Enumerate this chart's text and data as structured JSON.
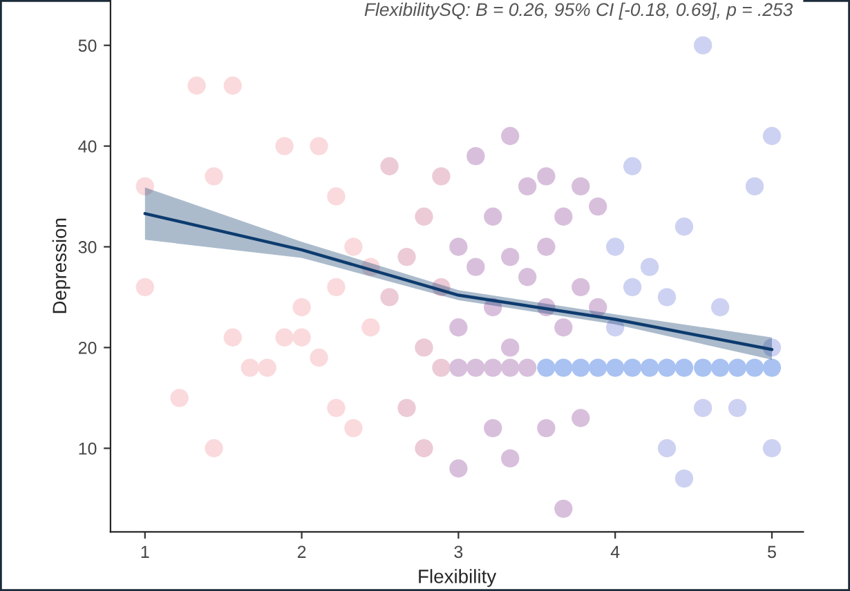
{
  "chart_data": {
    "type": "scatter",
    "xlabel": "Flexibility",
    "ylabel": "Depression",
    "annotations": [
      "FlexibilitySQ: B = 0.26, 95% CI [-0.18, 0.69], p = .253"
    ],
    "xlim": [
      0.78,
      5.2
    ],
    "ylim": [
      1.7,
      54.5
    ],
    "xticks": [
      1,
      2,
      3,
      4,
      5
    ],
    "yticks": [
      10,
      20,
      30,
      40,
      50
    ],
    "grid": false,
    "legend": false,
    "series": [
      {
        "marker": "circle",
        "color": "#fadadd",
        "x": [
          1,
          1,
          1.22,
          1.33,
          1.44,
          1.44,
          1.56,
          1.56,
          1.67,
          1.78,
          1.89,
          1.89,
          2,
          2,
          2.11,
          2.11,
          2.22,
          2.22,
          2.22,
          2.33,
          2.33,
          2.44,
          2.44
        ],
        "values": [
          36,
          26,
          15,
          46,
          10,
          37,
          46,
          21,
          18,
          18,
          21,
          40,
          24,
          21,
          40,
          19,
          26,
          14,
          35,
          30,
          12,
          28,
          22
        ]
      },
      {
        "marker": "circle",
        "color": "#eccbd6",
        "x": [
          2.56,
          2.56,
          2.67,
          2.67,
          2.78,
          2.78,
          2.78,
          2.89,
          2.89,
          2.89
        ],
        "values": [
          25,
          38,
          29,
          14,
          33,
          20,
          10,
          37,
          26,
          18
        ]
      },
      {
        "marker": "circle",
        "color": "#d8bfdc",
        "x": [
          3,
          3,
          3,
          3,
          3.11,
          3.11,
          3.11,
          3.22,
          3.22,
          3.22,
          3.22,
          3.33,
          3.33,
          3.33,
          3.33,
          3.33,
          3.44,
          3.44,
          3.44,
          3.56,
          3.56,
          3.56,
          3.56,
          3.67,
          3.67,
          3.67,
          3.78,
          3.78,
          3.78,
          3.89,
          3.89
        ],
        "values": [
          30,
          22,
          18,
          8,
          39,
          28,
          18,
          33,
          24,
          18,
          12,
          41,
          29,
          20,
          18,
          9,
          36,
          27,
          18,
          37,
          30,
          24,
          12,
          33,
          22,
          4,
          36,
          26,
          13,
          34,
          24
        ]
      },
      {
        "marker": "circle",
        "color": "#cdd2f2",
        "x": [
          4,
          4,
          4.11,
          4.11,
          4.22,
          4.33,
          4.33,
          4.44,
          4.44,
          4.56,
          4.56,
          4.67,
          4.78,
          4.89,
          5,
          5,
          5
        ],
        "values": [
          30,
          22,
          38,
          26,
          28,
          25,
          10,
          32,
          7,
          50,
          14,
          24,
          14,
          36,
          41,
          20,
          10
        ]
      },
      {
        "marker": "circle",
        "color": "#a9c2f2",
        "x": [
          3.56,
          3.67,
          3.78,
          3.89,
          4,
          4.11,
          4.22,
          4.33,
          4.44,
          4.56,
          4.67,
          4.78,
          4.89,
          5
        ],
        "values": [
          18,
          18,
          18,
          18,
          18,
          18,
          18,
          18,
          18,
          18,
          18,
          18,
          18,
          18
        ]
      },
      {
        "type": "line",
        "marker": "none",
        "color": "#0d3b6e",
        "x": [
          1,
          2,
          3,
          4,
          5
        ],
        "values": [
          33.3,
          29.7,
          25.2,
          22.8,
          19.8
        ],
        "lower": [
          30.7,
          28.9,
          24.7,
          22.3,
          18.8
        ],
        "upper": [
          35.9,
          30.5,
          25.7,
          23.3,
          21.0
        ]
      }
    ]
  }
}
